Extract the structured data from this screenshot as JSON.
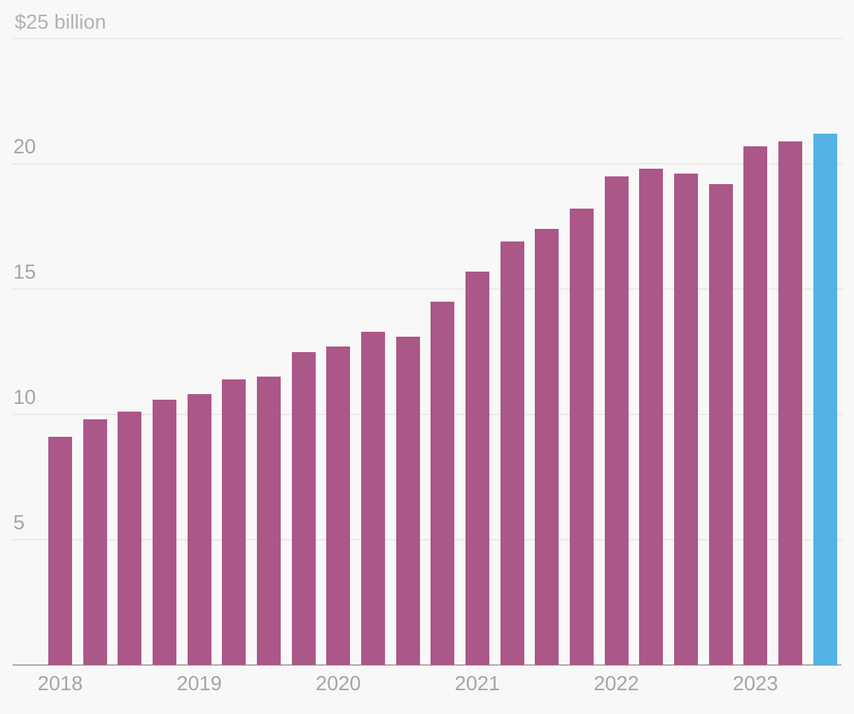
{
  "chart_data": {
    "type": "bar",
    "title": "",
    "unit": "USD billions",
    "top_axis_label": "$25 billion",
    "ylim": [
      0,
      25
    ],
    "grid": true,
    "legend": false,
    "yticks": [
      5,
      10,
      15,
      20,
      25
    ],
    "ytick_labels": [
      "5",
      "10",
      "15",
      "20"
    ],
    "year_labels": [
      "2018",
      "2019",
      "2020",
      "2021",
      "2022",
      "2023"
    ],
    "bars_per_year": 4,
    "bars": [
      {
        "period": "2018 Q1",
        "value": 9.1,
        "highlighted": false
      },
      {
        "period": "2018 Q2",
        "value": 9.8,
        "highlighted": false
      },
      {
        "period": "2018 Q3",
        "value": 10.1,
        "highlighted": false
      },
      {
        "period": "2018 Q4",
        "value": 10.6,
        "highlighted": false
      },
      {
        "period": "2019 Q1",
        "value": 10.8,
        "highlighted": false
      },
      {
        "period": "2019 Q2",
        "value": 11.4,
        "highlighted": false
      },
      {
        "period": "2019 Q3",
        "value": 11.5,
        "highlighted": false
      },
      {
        "period": "2019 Q4",
        "value": 12.5,
        "highlighted": false
      },
      {
        "period": "2020 Q1",
        "value": 12.7,
        "highlighted": false
      },
      {
        "period": "2020 Q2",
        "value": 13.3,
        "highlighted": false
      },
      {
        "period": "2020 Q3",
        "value": 13.1,
        "highlighted": false
      },
      {
        "period": "2020 Q4",
        "value": 14.5,
        "highlighted": false
      },
      {
        "period": "2021 Q1",
        "value": 15.7,
        "highlighted": false
      },
      {
        "period": "2021 Q2",
        "value": 16.9,
        "highlighted": false
      },
      {
        "period": "2021 Q3",
        "value": 17.4,
        "highlighted": false
      },
      {
        "period": "2021 Q4",
        "value": 18.2,
        "highlighted": false
      },
      {
        "period": "2022 Q1",
        "value": 19.5,
        "highlighted": false
      },
      {
        "period": "2022 Q2",
        "value": 19.8,
        "highlighted": false
      },
      {
        "period": "2022 Q3",
        "value": 19.6,
        "highlighted": false
      },
      {
        "period": "2022 Q4",
        "value": 19.2,
        "highlighted": false
      },
      {
        "period": "2023 Q1",
        "value": 20.7,
        "highlighted": false
      },
      {
        "period": "2023 Q2",
        "value": 20.9,
        "highlighted": false
      },
      {
        "period": "2023 Q3",
        "value": 21.2,
        "highlighted": true
      }
    ],
    "colors": {
      "bar": "#AB5787",
      "highlight": "#53B1E4",
      "background": "#f8f8f8",
      "gridline": "#e9e9e9",
      "axis": "#a9a9a9",
      "tick_label": "#a5a5a5",
      "top_label": "#b2b2b2"
    }
  }
}
